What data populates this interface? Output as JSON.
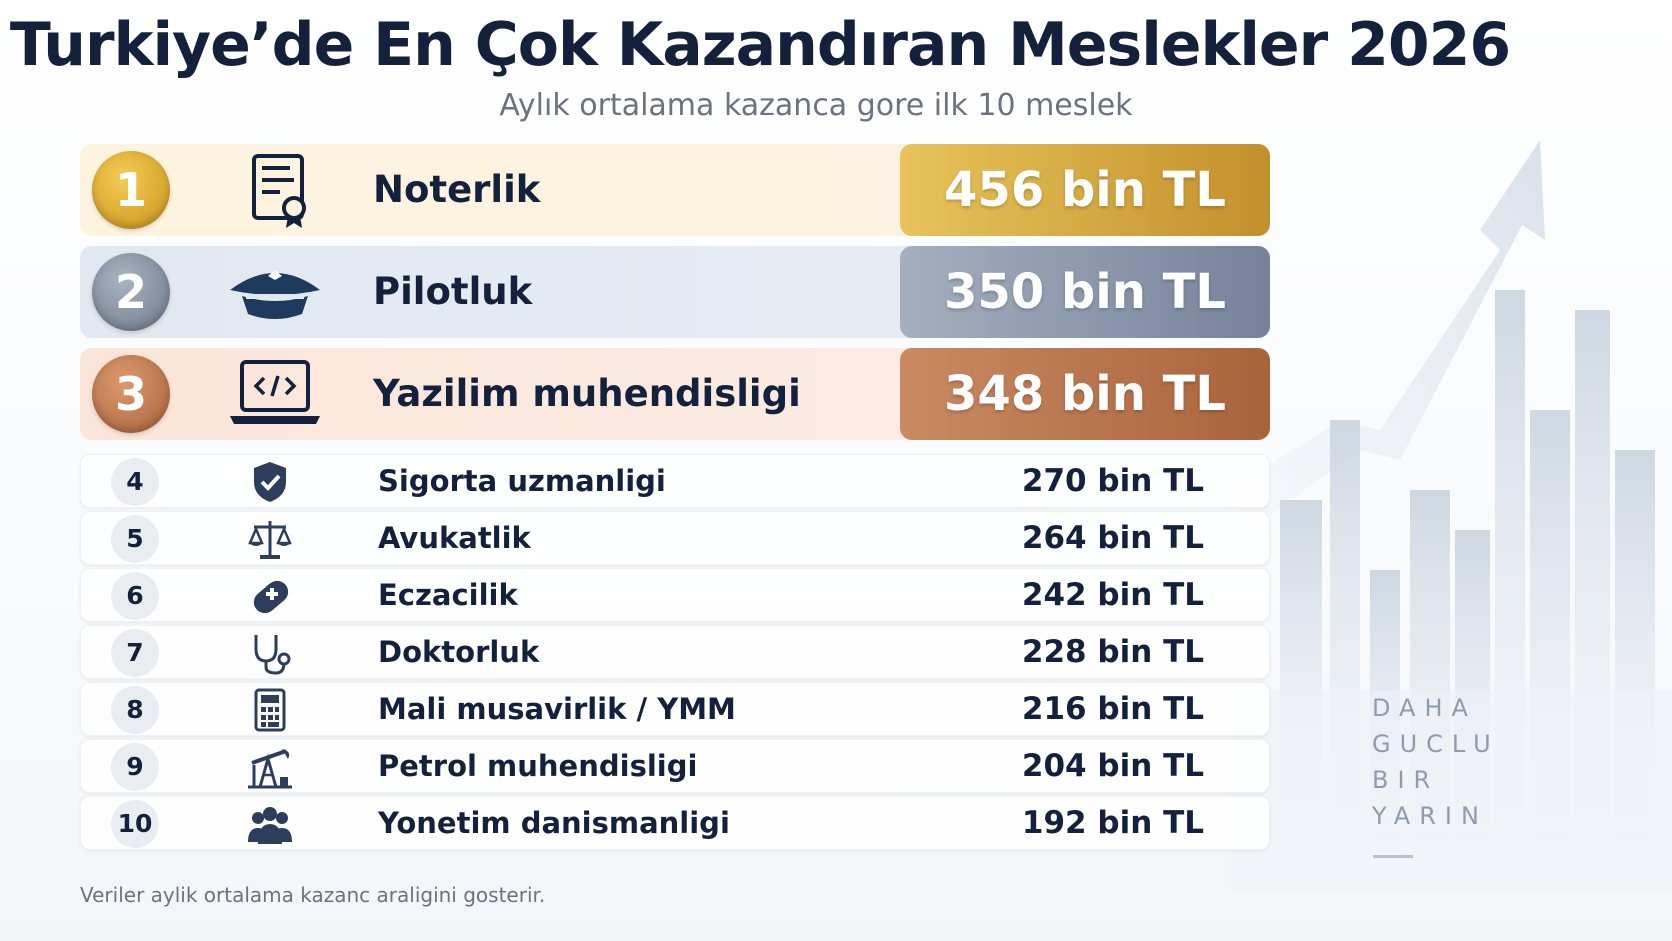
{
  "header": {
    "title": "Turkiye’de En Çok Kazandıran Meslekler 2026",
    "subtitle": "Aylık ortalama kazanca gore ilk 10 meslek"
  },
  "top3": [
    {
      "rank": "1",
      "label": "Noterlik",
      "value": "456 bin TL",
      "icon": "notary-certificate-icon"
    },
    {
      "rank": "2",
      "label": "Pilotluk",
      "value": "350 bin TL",
      "icon": "pilot-cap-icon"
    },
    {
      "rank": "3",
      "label": "Yazilim muhendisligi",
      "value": "348 bin TL",
      "icon": "laptop-code-icon"
    }
  ],
  "rows": [
    {
      "rank": "4",
      "label": "Sigorta uzmanligi",
      "value": "270 bin TL",
      "icon": "shield-check-icon"
    },
    {
      "rank": "5",
      "label": "Avukatlik",
      "value": "264 bin TL",
      "icon": "scales-icon"
    },
    {
      "rank": "6",
      "label": "Eczacilik",
      "value": "242 bin TL",
      "icon": "pill-icon"
    },
    {
      "rank": "7",
      "label": "Doktorluk",
      "value": "228 bin TL",
      "icon": "stethoscope-icon"
    },
    {
      "rank": "8",
      "label": "Mali musavirlik / YMM",
      "value": "216 bin TL",
      "icon": "calculator-icon"
    },
    {
      "rank": "9",
      "label": "Petrol muhendisligi",
      "value": "204 bin TL",
      "icon": "oil-pump-icon"
    },
    {
      "rank": "10",
      "label": "Yonetim danismanligi",
      "value": "192 bin TL",
      "icon": "team-icon"
    }
  ],
  "brand": {
    "line1": "DAHA",
    "line2": "GUCLU",
    "line3": "BIR",
    "line4": "YARIN"
  },
  "footnote": "Veriler aylik ortalama kazanc araligini gosterir.",
  "colors": {
    "gold": "#c8921a",
    "silver": "#75829a",
    "bronze": "#a9633b",
    "navy": "#14213d"
  }
}
